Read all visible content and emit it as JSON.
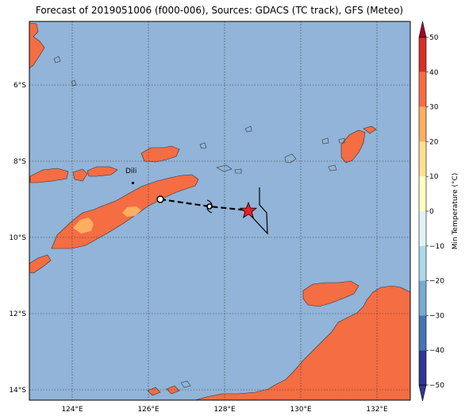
{
  "title": "Forecast of 2019051006 (f000-006), Sources: GDACS (TC track), GFS (Meteo)",
  "lat_labels": [
    "6°S",
    "8°S",
    "10°S",
    "12°S",
    "14°S"
  ],
  "lon_labels": [
    "124°E",
    "126°E",
    "128°E",
    "130°E",
    "132°E"
  ],
  "city": {
    "name": "Dili"
  },
  "colorbar": {
    "label": "Min Temperature (°C)",
    "ticks": [
      "50",
      "40",
      "30",
      "20",
      "10",
      "0",
      "−10",
      "−20",
      "−30",
      "−40",
      "−50"
    ],
    "colors": [
      "#a50026",
      "#d73027",
      "#f46d43",
      "#fdae61",
      "#fee090",
      "#ffffbf",
      "#e0f3f8",
      "#abd9e9",
      "#74add1",
      "#4575b4",
      "#313695"
    ]
  },
  "colors": {
    "sea": "#91b4d8",
    "land_warm": "#f46d43",
    "land_cool": "#fdae61",
    "land_coolest": "#fee090",
    "storm_marker": "#e8202a"
  }
}
